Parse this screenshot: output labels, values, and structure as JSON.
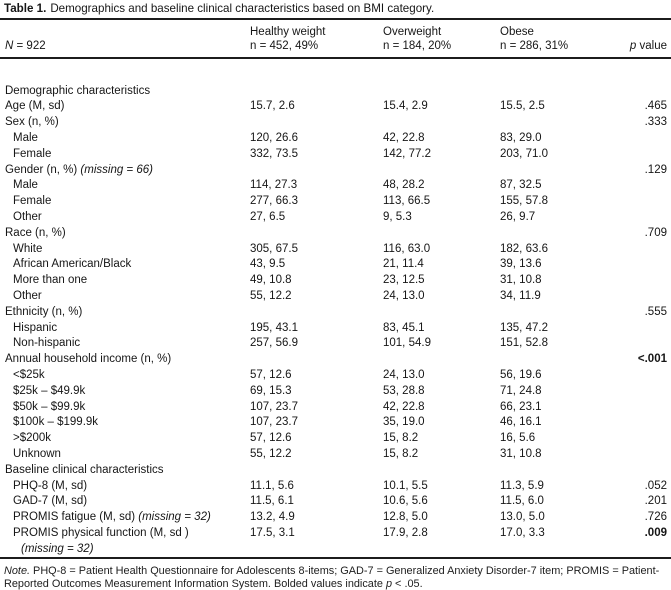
{
  "caption": {
    "label": "Table 1.",
    "text": "Demographics and baseline clinical characteristics based on BMI category."
  },
  "header": {
    "n_italic": "N",
    "n_rest": " = 922",
    "groups": [
      {
        "title": "Healthy weight",
        "subtitle": "n = 452, 49%"
      },
      {
        "title": "Overweight",
        "subtitle": "n = 184, 20%"
      },
      {
        "title": "Obese",
        "subtitle": "n = 286, 31%"
      }
    ],
    "p_italic": "p",
    "p_rest": " value"
  },
  "rows": [
    {
      "label": "Demographic characteristics",
      "indent": 0,
      "values": [
        "",
        "",
        ""
      ],
      "p": ""
    },
    {
      "label": "Age (M, sd)",
      "indent": 0,
      "values": [
        "15.7, 2.6",
        "15.4, 2.9",
        "15.5, 2.5"
      ],
      "p": ".465"
    },
    {
      "label": "Sex (n, %)",
      "indent": 0,
      "values": [
        "",
        "",
        ""
      ],
      "p": ".333"
    },
    {
      "label": "Male",
      "indent": 1,
      "values": [
        "120, 26.6",
        "42, 22.8",
        "83, 29.0"
      ],
      "p": ""
    },
    {
      "label": "Female",
      "indent": 1,
      "values": [
        "332, 73.5",
        "142, 77.2",
        "203, 71.0"
      ],
      "p": ""
    },
    {
      "label": "Gender (n, %)",
      "label_italic": "(missing = 66)",
      "indent": 0,
      "values": [
        "",
        "",
        ""
      ],
      "p": ".129"
    },
    {
      "label": "Male",
      "indent": 1,
      "values": [
        "114, 27.3",
        "48, 28.2",
        "87, 32.5"
      ],
      "p": ""
    },
    {
      "label": "Female",
      "indent": 1,
      "values": [
        "277, 66.3",
        "113, 66.5",
        "155, 57.8"
      ],
      "p": ""
    },
    {
      "label": "Other",
      "indent": 1,
      "values": [
        "27, 6.5",
        "9, 5.3",
        "26, 9.7"
      ],
      "p": ""
    },
    {
      "label": "Race (n, %)",
      "indent": 0,
      "values": [
        "",
        "",
        ""
      ],
      "p": ".709"
    },
    {
      "label": "White",
      "indent": 1,
      "values": [
        "305, 67.5",
        "116, 63.0",
        "182, 63.6"
      ],
      "p": ""
    },
    {
      "label": "African American/Black",
      "indent": 1,
      "values": [
        "43, 9.5",
        "21, 11.4",
        "39, 13.6"
      ],
      "p": ""
    },
    {
      "label": "More than one",
      "indent": 1,
      "values": [
        "49, 10.8",
        "23, 12.5",
        "31, 10.8"
      ],
      "p": ""
    },
    {
      "label": "Other",
      "indent": 1,
      "values": [
        "55, 12.2",
        "24, 13.0",
        "34, 11.9"
      ],
      "p": ""
    },
    {
      "label": "Ethnicity (n, %)",
      "indent": 0,
      "values": [
        "",
        "",
        ""
      ],
      "p": ".555"
    },
    {
      "label": "Hispanic",
      "indent": 1,
      "values": [
        "195, 43.1",
        "83, 45.1",
        "135, 47.2"
      ],
      "p": ""
    },
    {
      "label": "Non-hispanic",
      "indent": 1,
      "values": [
        "257, 56.9",
        "101, 54.9",
        "151, 52.8"
      ],
      "p": ""
    },
    {
      "label": "Annual household income (n, %)",
      "indent": 0,
      "values": [
        "",
        "",
        ""
      ],
      "p": "<.001",
      "p_bold": true
    },
    {
      "label": "<$25k",
      "indent": 1,
      "values": [
        "57, 12.6",
        "24, 13.0",
        "56, 19.6"
      ],
      "p": ""
    },
    {
      "label": "$25k – $49.9k",
      "indent": 1,
      "values": [
        "69, 15.3",
        "53, 28.8",
        "71, 24.8"
      ],
      "p": ""
    },
    {
      "label": "$50k – $99.9k",
      "indent": 1,
      "values": [
        "107, 23.7",
        "42, 22.8",
        "66, 23.1"
      ],
      "p": ""
    },
    {
      "label": "$100k – $199.9k",
      "indent": 1,
      "values": [
        "107, 23.7",
        "35, 19.0",
        "46, 16.1"
      ],
      "p": ""
    },
    {
      "label": ">$200k",
      "indent": 1,
      "values": [
        "57, 12.6",
        "15, 8.2",
        "16, 5.6"
      ],
      "p": ""
    },
    {
      "label": "Unknown",
      "indent": 1,
      "values": [
        "55, 12.2",
        "15, 8.2",
        "31, 10.8"
      ],
      "p": ""
    },
    {
      "label": "Baseline clinical characteristics",
      "indent": 0,
      "values": [
        "",
        "",
        ""
      ],
      "p": ""
    },
    {
      "label": "PHQ-8 (M, sd)",
      "indent": 1,
      "values": [
        "11.1, 5.6",
        "10.1, 5.5",
        "11.3, 5.9"
      ],
      "p": ".052"
    },
    {
      "label": "GAD-7 (M, sd)",
      "indent": 1,
      "values": [
        "11.5, 6.1",
        "10.6, 5.6",
        "11.5, 6.0"
      ],
      "p": ".201"
    },
    {
      "label": "PROMIS fatigue (M, sd)",
      "label_italic": "(missing = 32)",
      "indent": 1,
      "values": [
        "13.2, 4.9",
        "12.8, 5.0",
        "13.0, 5.0"
      ],
      "p": ".726"
    },
    {
      "label": "PROMIS physical function (M, sd )",
      "label2_italic": "(missing = 32)",
      "indent": 1,
      "values": [
        "17.5, 3.1",
        "17.9, 2.8",
        "17.0, 3.3"
      ],
      "p": ".009",
      "p_bold": true
    }
  ],
  "note": {
    "label_italic": "Note.",
    "text1": " PHQ-8 = Patient Health Questionnaire for Adolescents 8-items; GAD-7 = Generalized Anxiety Disorder-7 item; PROMIS = Patient-Reported Outcomes Measurement Information System. Bolded values indicate ",
    "p_italic": "p",
    "text2": " < .05."
  }
}
